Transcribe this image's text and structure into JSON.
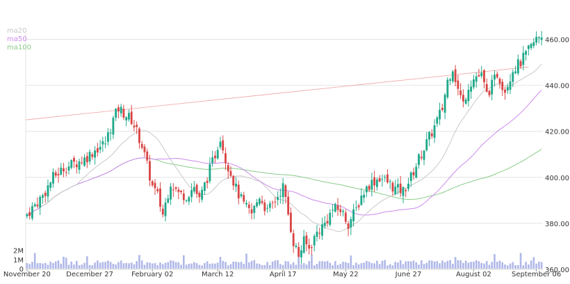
{
  "chart_data": {
    "type": "candlestick",
    "title": "",
    "xlabel": "",
    "ylabel": "",
    "ylim": [
      360,
      465
    ],
    "volume_ylim": [
      0,
      3.5
    ],
    "y_ticks": [
      {
        "value": 360,
        "label": "360.00"
      },
      {
        "value": 380,
        "label": "380.00"
      },
      {
        "value": 400,
        "label": "400.00"
      },
      {
        "value": 420,
        "label": "420.00"
      },
      {
        "value": 440,
        "label": "440.00"
      },
      {
        "value": 460,
        "label": "460.00"
      }
    ],
    "volume_ticks": [
      {
        "value": 0,
        "label": "0"
      },
      {
        "value": 1,
        "label": "1M"
      },
      {
        "value": 2,
        "label": "2M"
      }
    ],
    "x_ticks": [
      {
        "index": 0,
        "label": "November 20"
      },
      {
        "index": 24,
        "label": "December 27"
      },
      {
        "index": 48,
        "label": "February 02"
      },
      {
        "index": 73,
        "label": "March 12"
      },
      {
        "index": 98,
        "label": "April 17"
      },
      {
        "index": 122,
        "label": "May 22"
      },
      {
        "index": 146,
        "label": "June 27"
      },
      {
        "index": 171,
        "label": "August 02"
      },
      {
        "index": 195,
        "label": "September 06"
      }
    ],
    "legend": [
      {
        "name": "ma20",
        "color": "#c8c8c8"
      },
      {
        "name": "ma50",
        "color": "#cc88ee"
      },
      {
        "name": "ma100",
        "color": "#88cc88"
      }
    ],
    "legend_position": "top-left",
    "colors": {
      "up": "#1fa88a",
      "down": "#d94545",
      "volume": "#b0b8e8",
      "trendline": "#f0a0a0",
      "ma20": "#c8c8c8",
      "ma50": "#cc88ee",
      "ma100": "#88cc88",
      "grid": "#e4e4e4"
    },
    "anchors": [
      [
        0,
        384
      ],
      [
        6,
        392
      ],
      [
        10,
        400
      ],
      [
        14,
        404
      ],
      [
        18,
        406
      ],
      [
        22,
        408
      ],
      [
        26,
        412
      ],
      [
        30,
        415
      ],
      [
        33,
        425
      ],
      [
        35,
        430
      ],
      [
        38,
        427
      ],
      [
        40,
        425
      ],
      [
        42,
        420
      ],
      [
        44,
        414
      ],
      [
        46,
        405
      ],
      [
        48,
        396
      ],
      [
        50,
        392
      ],
      [
        52,
        384
      ],
      [
        55,
        398
      ],
      [
        58,
        393
      ],
      [
        61,
        392
      ],
      [
        64,
        396
      ],
      [
        66,
        390
      ],
      [
        69,
        400
      ],
      [
        72,
        410
      ],
      [
        74,
        418
      ],
      [
        76,
        408
      ],
      [
        78,
        402
      ],
      [
        80,
        395
      ],
      [
        83,
        388
      ],
      [
        86,
        384
      ],
      [
        89,
        392
      ],
      [
        92,
        385
      ],
      [
        95,
        390
      ],
      [
        98,
        396
      ],
      [
        100,
        384
      ],
      [
        102,
        372
      ],
      [
        104,
        366
      ],
      [
        106,
        372
      ],
      [
        108,
        369
      ],
      [
        111,
        376
      ],
      [
        114,
        380
      ],
      [
        117,
        386
      ],
      [
        120,
        386
      ],
      [
        123,
        380
      ],
      [
        126,
        386
      ],
      [
        128,
        392
      ],
      [
        131,
        397
      ],
      [
        135,
        400
      ],
      [
        138,
        398
      ],
      [
        141,
        395
      ],
      [
        144,
        394
      ],
      [
        147,
        400
      ],
      [
        150,
        408
      ],
      [
        153,
        415
      ],
      [
        156,
        422
      ],
      [
        159,
        430
      ],
      [
        161,
        442
      ],
      [
        163,
        448
      ],
      [
        165,
        438
      ],
      [
        167,
        432
      ],
      [
        169,
        440
      ],
      [
        172,
        444
      ],
      [
        174,
        444
      ],
      [
        176,
        436
      ],
      [
        178,
        440
      ],
      [
        180,
        445
      ],
      [
        183,
        438
      ],
      [
        186,
        447
      ],
      [
        189,
        450
      ],
      [
        192,
        455
      ],
      [
        195,
        460
      ],
      [
        197,
        462
      ]
    ]
  }
}
